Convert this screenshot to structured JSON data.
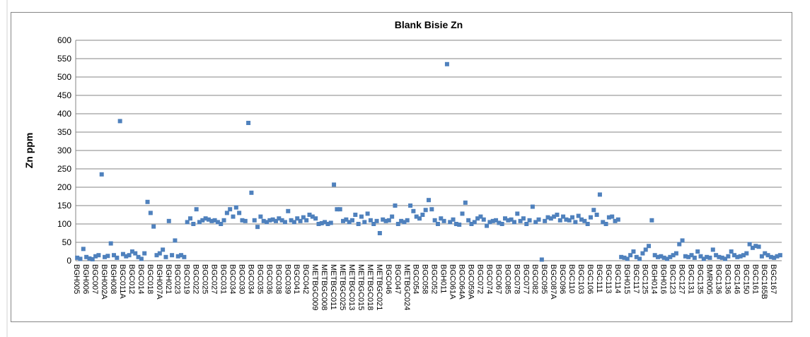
{
  "chart_data": {
    "type": "scatter",
    "title": "Blank Bisie Zn",
    "y_label": "Zn ppm",
    "color": "#4f81bd",
    "grid": true,
    "ylim": [
      0,
      600
    ],
    "yticks": [
      0,
      50,
      100,
      150,
      200,
      250,
      300,
      350,
      400,
      450,
      500,
      550,
      600
    ],
    "categories": [
      "BGH005",
      null,
      null,
      "BGH006",
      null,
      null,
      "BGC007",
      null,
      null,
      "BGH002A",
      null,
      null,
      "BGH008",
      null,
      null,
      "BGC011A",
      null,
      null,
      "BGC012",
      null,
      null,
      "BGC014",
      null,
      null,
      "BGC018",
      null,
      null,
      "BGH007A",
      null,
      null,
      "BGH021",
      null,
      null,
      "BGC023",
      null,
      null,
      "BGC019",
      null,
      null,
      "BGC022",
      null,
      null,
      "BGC025",
      null,
      null,
      "BGC027",
      null,
      null,
      "BGC031",
      null,
      null,
      "BGC034",
      null,
      null,
      "BGC030",
      null,
      null,
      "BGC034",
      null,
      null,
      "BGC035",
      null,
      null,
      "BGC036",
      null,
      null,
      "BGC038",
      null,
      null,
      "BGC039",
      null,
      null,
      "BGC041",
      null,
      null,
      "BGC042",
      null,
      null,
      "METBGC009",
      null,
      null,
      "METBGC008",
      null,
      null,
      "METBGC011",
      null,
      null,
      "METBGC025",
      null,
      null,
      "METBGC013",
      null,
      null,
      "METBGC015",
      null,
      null,
      "METBGC018",
      null,
      null,
      "METBGC021",
      null,
      null,
      "BGC046",
      null,
      null,
      "BGC047",
      null,
      null,
      "METBGC024",
      null,
      null,
      "BGC054",
      null,
      null,
      "BGC058",
      null,
      null,
      "BGC052",
      null,
      null,
      "BGH011",
      null,
      null,
      "BGC061A",
      null,
      null,
      "BGC064A",
      null,
      null,
      "BGC059A",
      null,
      null,
      "BGC072",
      null,
      null,
      "BGC074",
      null,
      null,
      "BGC067",
      null,
      null,
      "BGC085",
      null,
      null,
      "BGC078",
      null,
      null,
      "BGC077",
      null,
      null,
      "BGC082",
      null,
      null,
      "BGC095",
      null,
      null,
      "BGC087A",
      null,
      null,
      "BGC096",
      null,
      null,
      "BGC110",
      null,
      null,
      "BGC103",
      null,
      null,
      "BGC106",
      null,
      null,
      "BGC111",
      null,
      null,
      "BGC113",
      null,
      null,
      "BGC114",
      null,
      null,
      "BGH015",
      null,
      null,
      "BGC117",
      null,
      null,
      "BGC125",
      null,
      null,
      "BGH014",
      null,
      null,
      "BGH016",
      null,
      null,
      "BGC123",
      null,
      null,
      "BGC127",
      null,
      null,
      "BGC131",
      null,
      null,
      "BGC135",
      null,
      null,
      "BMR005",
      null,
      null,
      "BGC136",
      null,
      null,
      "BGC136",
      null,
      null,
      "BGC146",
      null,
      null,
      "BGC150",
      null,
      null,
      "BGC161",
      null,
      null,
      "BGC165B",
      null,
      null,
      "BGC167",
      null,
      null
    ],
    "values": [
      8,
      5,
      32,
      10,
      6,
      4,
      12,
      15,
      235,
      10,
      13,
      47,
      15,
      8,
      380,
      18,
      12,
      15,
      25,
      20,
      10,
      5,
      20,
      160,
      130,
      93,
      15,
      20,
      30,
      10,
      108,
      15,
      55,
      12,
      15,
      10,
      105,
      115,
      100,
      140,
      105,
      110,
      115,
      112,
      108,
      110,
      105,
      100,
      110,
      130,
      140,
      120,
      145,
      130,
      110,
      108,
      375,
      185,
      110,
      92,
      120,
      108,
      105,
      110,
      112,
      108,
      115,
      110,
      105,
      135,
      110,
      105,
      115,
      108,
      118,
      110,
      125,
      120,
      115,
      100,
      102,
      105,
      100,
      103,
      207,
      140,
      140,
      108,
      112,
      105,
      110,
      125,
      100,
      120,
      105,
      128,
      110,
      100,
      108,
      75,
      112,
      108,
      110,
      120,
      150,
      100,
      108,
      105,
      110,
      150,
      135,
      120,
      115,
      125,
      138,
      165,
      140,
      110,
      100,
      115,
      108,
      535,
      105,
      112,
      100,
      98,
      128,
      158,
      110,
      100,
      105,
      115,
      120,
      112,
      95,
      105,
      108,
      110,
      103,
      100,
      115,
      110,
      112,
      105,
      128,
      108,
      115,
      100,
      110,
      147,
      105,
      112,
      3,
      108,
      118,
      115,
      120,
      125,
      110,
      120,
      112,
      110,
      118,
      105,
      122,
      112,
      108,
      100,
      118,
      138,
      125,
      180,
      105,
      100,
      118,
      120,
      108,
      112,
      10,
      8,
      5,
      15,
      25,
      10,
      5,
      20,
      30,
      40,
      110,
      15,
      10,
      12,
      8,
      5,
      10,
      15,
      20,
      45,
      55,
      12,
      10,
      15,
      8,
      25,
      12,
      5,
      10,
      8,
      30,
      15,
      10,
      8,
      5,
      12,
      25,
      15,
      10,
      12,
      15,
      20,
      45,
      35,
      40,
      38,
      12,
      20,
      15,
      10,
      8,
      12,
      15
    ]
  }
}
